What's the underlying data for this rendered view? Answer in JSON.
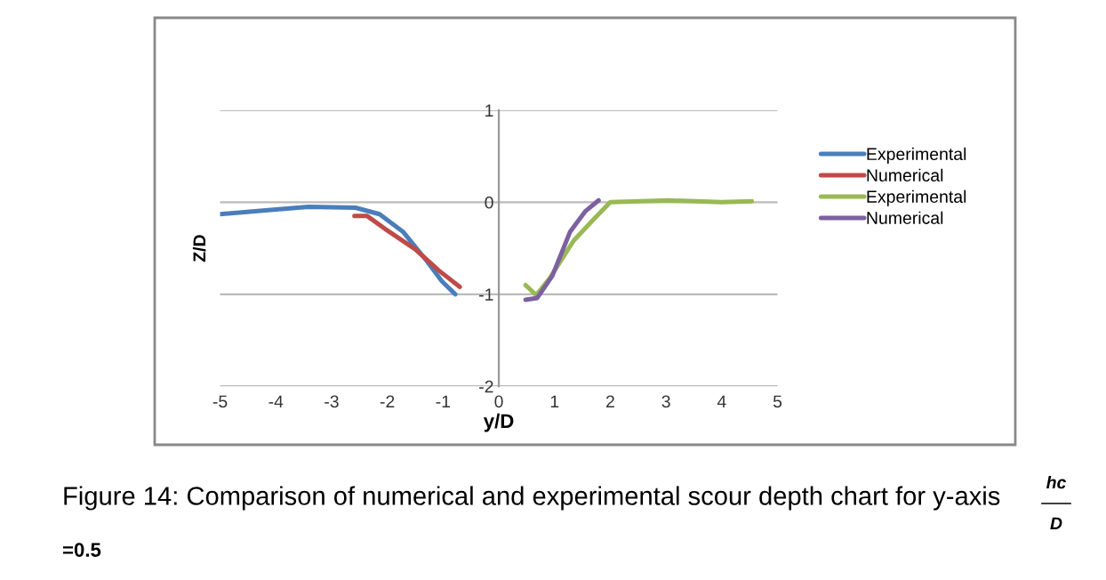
{
  "chart_data": {
    "type": "line",
    "xlabel": "y/D",
    "ylabel": "Z/D",
    "xlim": [
      -5,
      5
    ],
    "xticks": [
      -5,
      -4,
      -3,
      -2,
      -1,
      0,
      1,
      2,
      3,
      4,
      5
    ],
    "ylim": [
      -2,
      1
    ],
    "yticks": [
      -2,
      -1,
      0,
      1
    ],
    "grid": "y",
    "legend": "right",
    "marker": "none",
    "line_style": "solid",
    "series": [
      {
        "name": "Experimental",
        "color": "#4a7ebb",
        "x": [
          -5,
          -4,
          -3.41,
          -2.57,
          -2.14,
          -1.72,
          -1.29,
          -1.02,
          -0.78
        ],
        "values": [
          -0.13,
          -0.08,
          -0.05,
          -0.06,
          -0.13,
          -0.32,
          -0.64,
          -0.86,
          -1.0
        ]
      },
      {
        "name": "Numerical",
        "color": "#be4b48",
        "x": [
          -2.59,
          -2.36,
          -2.04,
          -1.5,
          -1.08,
          -0.7
        ],
        "values": [
          -0.15,
          -0.15,
          -0.29,
          -0.51,
          -0.74,
          -0.92
        ]
      },
      {
        "name": "Experimental",
        "color": "#98b954",
        "x": [
          0.48,
          0.67,
          0.91,
          1.34,
          1.71,
          2.0,
          3.04,
          4.0,
          4.54
        ],
        "values": [
          -0.9,
          -1.01,
          -0.83,
          -0.42,
          -0.18,
          0,
          0.02,
          0,
          0.01
        ]
      },
      {
        "name": "Numerical",
        "color": "#7d60a0",
        "x": [
          0.48,
          0.69,
          0.96,
          1.28,
          1.55,
          1.79
        ],
        "values": [
          -1.06,
          -1.04,
          -0.8,
          -0.32,
          -0.1,
          0.02
        ]
      }
    ],
    "annotations": [
      "Figure 14: Comparison of numerical and experimental scour depth chart for y-axis",
      "hc",
      "D",
      "=0.5"
    ]
  }
}
